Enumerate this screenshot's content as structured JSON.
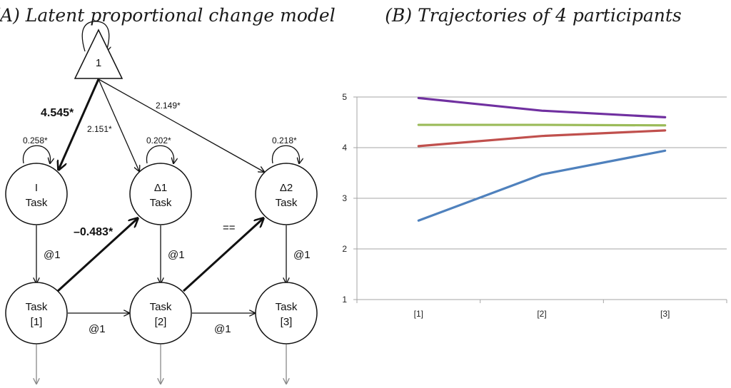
{
  "panel_a": {
    "title": "(A) Latent proportional change model",
    "constant_label": "1",
    "nodes": {
      "i_line1": "I",
      "i_line2": "Task",
      "d1_line1": "Δ1",
      "d1_line2": "Task",
      "d2_line1": "Δ2",
      "d2_line2": "Task",
      "t1_line1": "Task",
      "t1_line2": "[1]",
      "t2_line1": "Task",
      "t2_line2": "[2]",
      "t3_line1": "Task",
      "t3_line2": "[3]"
    },
    "labels": {
      "mean_i": "4.545*",
      "mean_d1": "2.151*",
      "mean_d2": "2.149*",
      "var_i": "0.258*",
      "var_d1": "0.202*",
      "var_d2": "0.218*",
      "load_i": "@1",
      "load_d1": "@1",
      "load_d2": "@1",
      "auto_12": "@1",
      "auto_23": "@1",
      "prop_1": "–0.483*",
      "prop_2": "=="
    }
  },
  "panel_b": {
    "title": "(B) Trajectories of 4 participants"
  },
  "chart_data": {
    "type": "line",
    "categories": [
      "[1]",
      "[2]",
      "[3]"
    ],
    "ylim": [
      1,
      5
    ],
    "yticks": [
      1,
      2,
      3,
      4,
      5
    ],
    "grid": true,
    "legend": "none",
    "series": [
      {
        "values": [
          4.98,
          4.73,
          4.6
        ],
        "color": "#7030a0"
      },
      {
        "values": [
          4.45,
          4.45,
          4.44
        ],
        "color": "#9bbb59"
      },
      {
        "values": [
          4.03,
          4.23,
          4.34
        ],
        "color": "#c0504d"
      },
      {
        "values": [
          2.56,
          3.47,
          3.94
        ],
        "color": "#4f81bd"
      }
    ]
  }
}
